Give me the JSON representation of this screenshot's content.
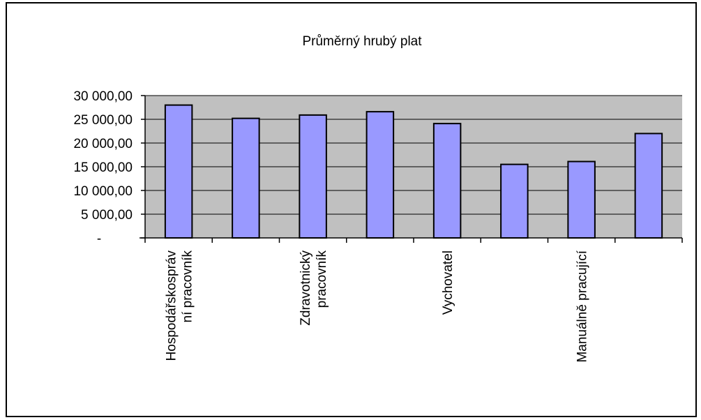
{
  "chart_data": {
    "type": "bar",
    "title": "Průměrný hrubý plat",
    "xlabel": "",
    "ylabel": "",
    "ylim": [
      0,
      30000
    ],
    "y_ticks": [
      {
        "value": 0,
        "label": "-"
      },
      {
        "value": 5000,
        "label": "5 000,00"
      },
      {
        "value": 10000,
        "label": "10 000,00"
      },
      {
        "value": 15000,
        "label": "15 000,00"
      },
      {
        "value": 20000,
        "label": "20 000,00"
      },
      {
        "value": 25000,
        "label": "25 000,00"
      },
      {
        "value": 30000,
        "label": "30 000,00"
      }
    ],
    "categories": [
      [
        "Hospodářskospráv",
        "ní pracovník"
      ],
      [],
      [
        "Zdravotnický",
        "pracovník"
      ],
      [],
      [
        "Vychovatel"
      ],
      [],
      [
        "Manuálně pracující"
      ],
      []
    ],
    "values": [
      28000,
      25200,
      25900,
      26600,
      24100,
      15500,
      16100,
      22000
    ],
    "grid": true,
    "legend": "none",
    "colors": {
      "bar_fill": "#9999FF",
      "bar_stroke": "#000000",
      "plot_bg": "#C0C0C0",
      "grid": "#000000"
    }
  }
}
